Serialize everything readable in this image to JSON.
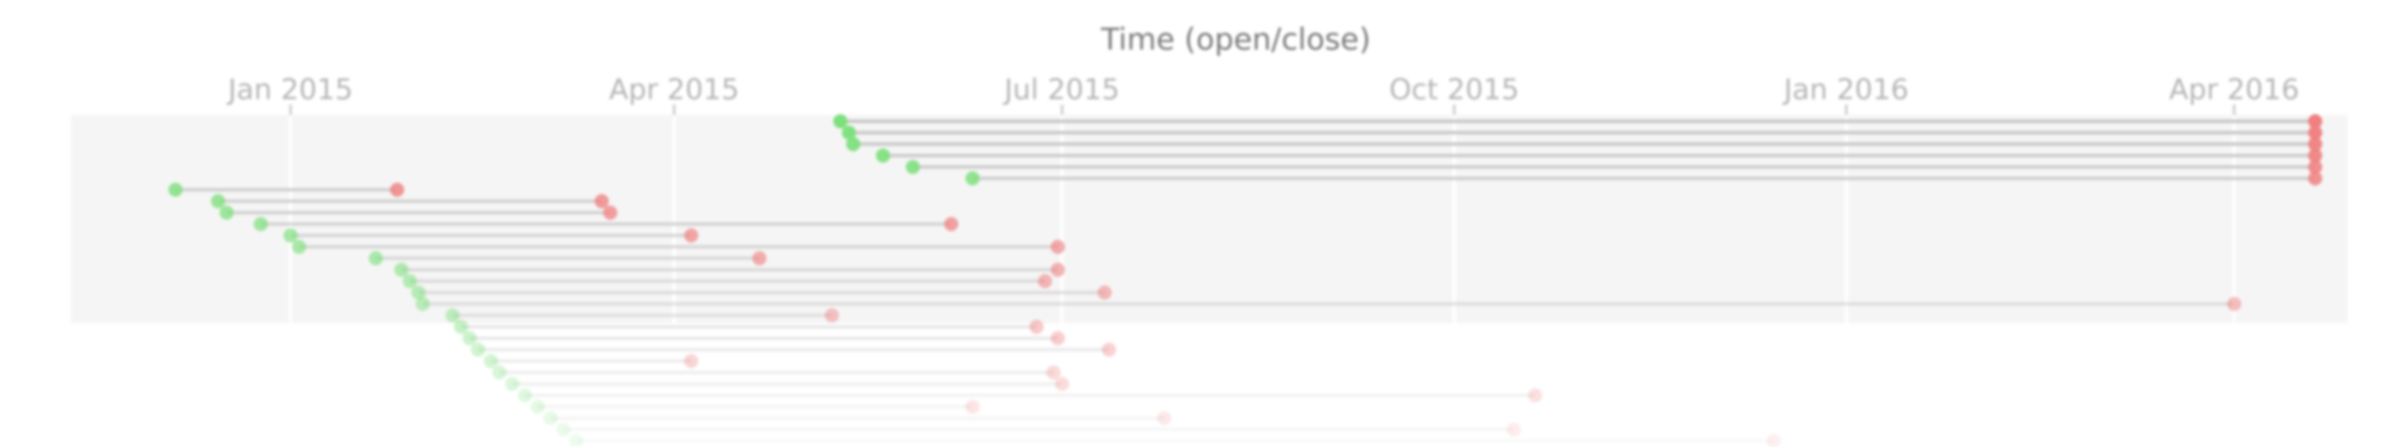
{
  "chart_data": {
    "type": "scatter",
    "title": "Time (open/close)",
    "xaxis_position": "top",
    "x_range": [
      "2014-11-01",
      "2016-04-25"
    ],
    "ticks": [
      {
        "date": "2015-01-01",
        "label": "Jan 2015"
      },
      {
        "date": "2015-04-01",
        "label": "Apr 2015"
      },
      {
        "date": "2015-07-01",
        "label": "Jul 2015"
      },
      {
        "date": "2015-10-01",
        "label": "Oct 2015"
      },
      {
        "date": "2016-01-01",
        "label": "Jan 2016"
      },
      {
        "date": "2016-04-01",
        "label": "Apr 2016"
      }
    ],
    "grid": true,
    "open_color": "#7de07d",
    "close_color": "#f08080",
    "line_color": "#c8c8c8",
    "series": [
      {
        "open": "2015-05-10",
        "close": "2016-04-20"
      },
      {
        "open": "2015-05-12",
        "close": "2016-04-20"
      },
      {
        "open": "2015-05-13",
        "close": "2016-04-20"
      },
      {
        "open": "2015-05-20",
        "close": "2016-04-20"
      },
      {
        "open": "2015-05-27",
        "close": "2016-04-20"
      },
      {
        "open": "2015-06-10",
        "close": "2016-04-20"
      },
      {
        "open": "2014-12-05",
        "close": "2015-01-26"
      },
      {
        "open": "2014-12-15",
        "close": "2015-03-15"
      },
      {
        "open": "2014-12-17",
        "close": "2015-03-17"
      },
      {
        "open": "2014-12-25",
        "close": "2015-06-05"
      },
      {
        "open": "2015-01-01",
        "close": "2015-04-05"
      },
      {
        "open": "2015-01-03",
        "close": "2015-06-30"
      },
      {
        "open": "2015-01-21",
        "close": "2015-04-21"
      },
      {
        "open": "2015-01-27",
        "close": "2015-06-30"
      },
      {
        "open": "2015-01-29",
        "close": "2015-06-27"
      },
      {
        "open": "2015-01-31",
        "close": "2015-07-11"
      },
      {
        "open": "2015-02-01",
        "close": "2016-04-01"
      },
      {
        "open": "2015-02-08",
        "close": "2015-05-08"
      },
      {
        "open": "2015-02-10",
        "close": "2015-06-25"
      },
      {
        "open": "2015-02-12",
        "close": "2015-06-30"
      },
      {
        "open": "2015-02-14",
        "close": "2015-07-12"
      },
      {
        "open": "2015-02-17",
        "close": "2015-04-05"
      },
      {
        "open": "2015-02-19",
        "close": "2015-06-29"
      },
      {
        "open": "2015-02-22",
        "close": "2015-07-01"
      },
      {
        "open": "2015-02-25",
        "close": "2015-10-20"
      },
      {
        "open": "2015-02-28",
        "close": "2015-06-10"
      },
      {
        "open": "2015-03-03",
        "close": "2015-07-25"
      },
      {
        "open": "2015-03-06",
        "close": "2015-10-15"
      },
      {
        "open": "2015-03-09",
        "close": "2015-12-15"
      }
    ]
  }
}
